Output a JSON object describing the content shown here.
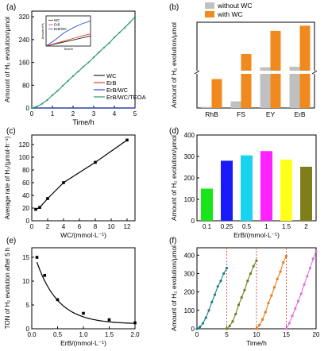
{
  "chart_data": [
    {
      "panel": "(a)",
      "type": "line",
      "xlabel": "Time/h",
      "ylabel": "Amount of H₂ evolution/μmol",
      "xlim": [
        0,
        5
      ],
      "ylim": [
        0,
        340
      ],
      "xticks": [
        "0",
        "1",
        "2",
        "3",
        "4",
        "5"
      ],
      "yticks": [
        "0",
        "80",
        "160",
        "240",
        "320"
      ],
      "legend": {
        "position": "right",
        "entries": [
          "WC",
          "ErB",
          "ErB/WC",
          "ErB/WC/TEOA"
        ]
      },
      "series": [
        {
          "name": "WC",
          "color": "#222222",
          "x": [
            0,
            1,
            2,
            3,
            4,
            5
          ],
          "y": [
            0,
            0,
            0,
            0,
            0,
            0
          ]
        },
        {
          "name": "ErB",
          "color": "#e0402f",
          "x": [
            0,
            1,
            2,
            3,
            4,
            5
          ],
          "y": [
            0,
            0,
            0,
            0,
            0,
            0
          ]
        },
        {
          "name": "ErB/WC",
          "color": "#2255cc",
          "x": [
            0,
            1,
            2,
            3,
            4,
            5
          ],
          "y": [
            0,
            0,
            0,
            0,
            0,
            0
          ]
        },
        {
          "name": "ErB/WC/TEOA",
          "color": "#2a9d6a",
          "x": [
            0,
            0.25,
            0.5,
            0.75,
            1,
            1.25,
            1.5,
            1.75,
            2,
            2.25,
            2.5,
            2.75,
            3,
            3.25,
            3.5,
            3.75,
            4,
            4.25,
            4.5,
            4.75,
            5
          ],
          "y": [
            0,
            5,
            15,
            28,
            45,
            60,
            78,
            95,
            112,
            128,
            145,
            160,
            178,
            195,
            212,
            228,
            248,
            265,
            282,
            300,
            320
          ]
        }
      ],
      "inset": {
        "xlabel": "Time/h",
        "ylabel": "Amount of H₂",
        "legend": [
          "WC",
          "ErB",
          "ErB/WC"
        ],
        "series": [
          {
            "name": "WC",
            "color": "#222222",
            "x": [
              0,
              1,
              2,
              3,
              4,
              5
            ],
            "y": [
              0,
              0.4,
              0.8,
              1.2,
              1.6,
              2.0
            ]
          },
          {
            "name": "ErB",
            "color": "#e0402f",
            "x": [
              0,
              1,
              2,
              3,
              4,
              5
            ],
            "y": [
              0,
              0.5,
              1.0,
              1.5,
              2.0,
              2.4
            ]
          },
          {
            "name": "ErB/WC",
            "color": "#2255cc",
            "x": [
              0,
              1,
              2,
              3,
              4,
              5
            ],
            "y": [
              0,
              1.2,
              2.6,
              3.6,
              4.4,
              5.0
            ]
          }
        ]
      }
    },
    {
      "panel": "(b)",
      "type": "bar",
      "xlabel": "",
      "ylabel": "Amount of H₂ evolution/μmol",
      "categories": [
        "RhB",
        "FS",
        "EY",
        "ErB"
      ],
      "legend": {
        "position": "top",
        "entries": [
          "without WC",
          "with WC"
        ]
      },
      "series": [
        {
          "name": "without WC",
          "color": "#c0c0c0",
          "values": [
            0.1,
            0.6,
            184,
            186
          ]
        },
        {
          "name": "with WC",
          "color": "#f08a1e",
          "values": [
            2.6,
            230,
            310,
            328
          ]
        }
      ],
      "axis_break": true
    },
    {
      "panel": "(c)",
      "type": "line",
      "xlabel": "WC/(mmol·L⁻¹)",
      "ylabel": "Average rate of H₂/(μmol·h⁻¹)",
      "xlim": [
        0,
        13
      ],
      "ylim": [
        0,
        135
      ],
      "xticks": [
        "0",
        "2",
        "4",
        "6",
        "8",
        "10",
        "12"
      ],
      "yticks": [
        "0",
        "20",
        "40",
        "60",
        "80",
        "100",
        "120"
      ],
      "series": [
        {
          "name": "",
          "color": "#000000",
          "x": [
            0.5,
            1,
            2,
            4,
            8,
            12
          ],
          "y": [
            18,
            21,
            35,
            60,
            92,
            127
          ]
        }
      ]
    },
    {
      "panel": "(d)",
      "type": "bar",
      "xlabel": "ErB/(mmol·L⁻¹)",
      "ylabel": "Amount of H₂ evolution/μmol",
      "ylim": [
        0,
        400
      ],
      "categories": [
        "0.1",
        "0.25",
        "0.5",
        "1",
        "1.5",
        "2"
      ],
      "yticks": [
        "0",
        "100",
        "200",
        "300",
        "400"
      ],
      "colors": [
        "#19e619",
        "#1a1aff",
        "#18d2f0",
        "#ff22ff",
        "#ffff1a",
        "#7f7f1a"
      ],
      "values": [
        150,
        280,
        305,
        325,
        285,
        252
      ]
    },
    {
      "panel": "(e)",
      "type": "scatter",
      "xlabel": "ErB/(mmol·L⁻¹)",
      "ylabel": "TON of H₂ evolution after 5 h",
      "xlim": [
        0,
        2
      ],
      "ylim": [
        0,
        17
      ],
      "xticks": [
        "0.0",
        "0.5",
        "1.0",
        "1.5",
        "2.0"
      ],
      "yticks": [
        "0",
        "5",
        "10",
        "15"
      ],
      "series": [
        {
          "name": "",
          "color": "#000000",
          "x": [
            0.1,
            0.25,
            0.5,
            1,
            1.5,
            2
          ],
          "y": [
            15,
            11.2,
            6.1,
            3.25,
            1.9,
            1.25
          ]
        }
      ]
    },
    {
      "panel": "(f)",
      "type": "line",
      "xlabel": "Time/h",
      "ylabel": "Amount of H₂ evolution/μmol",
      "xlim": [
        0,
        20
      ],
      "ylim": [
        0,
        440
      ],
      "xticks": [
        "0",
        "5",
        "10",
        "15",
        "20"
      ],
      "yticks": [
        "0",
        "100",
        "200",
        "300",
        "400"
      ],
      "series": [
        {
          "name": "",
          "color": "#1b7f85",
          "x": [
            0,
            0.5,
            1,
            1.5,
            2,
            2.5,
            3,
            3.5,
            4,
            4.5,
            5
          ],
          "y": [
            0,
            10,
            30,
            60,
            100,
            145,
            185,
            230,
            260,
            300,
            330
          ]
        },
        {
          "name": "",
          "color": "#6b7f1b",
          "x": [
            5,
            5.5,
            6,
            6.5,
            7,
            7.5,
            8,
            8.5,
            9,
            9.5,
            10
          ],
          "y": [
            0,
            15,
            40,
            80,
            130,
            170,
            210,
            260,
            300,
            340,
            370
          ]
        },
        {
          "name": "",
          "color": "#e87a1b",
          "x": [
            10,
            10.5,
            11,
            11.5,
            12,
            12.5,
            13,
            13.5,
            14,
            14.5,
            15
          ],
          "y": [
            0,
            20,
            50,
            90,
            140,
            180,
            225,
            270,
            310,
            360,
            395
          ]
        },
        {
          "name": "",
          "color": "#e070e0",
          "x": [
            15,
            15.5,
            16,
            16.5,
            17,
            17.5,
            18,
            18.5,
            19,
            19.5,
            20
          ],
          "y": [
            0,
            30,
            70,
            110,
            150,
            190,
            240,
            285,
            330,
            380,
            420
          ]
        }
      ],
      "cycle_dividers_x": [
        5,
        10,
        15
      ]
    }
  ]
}
